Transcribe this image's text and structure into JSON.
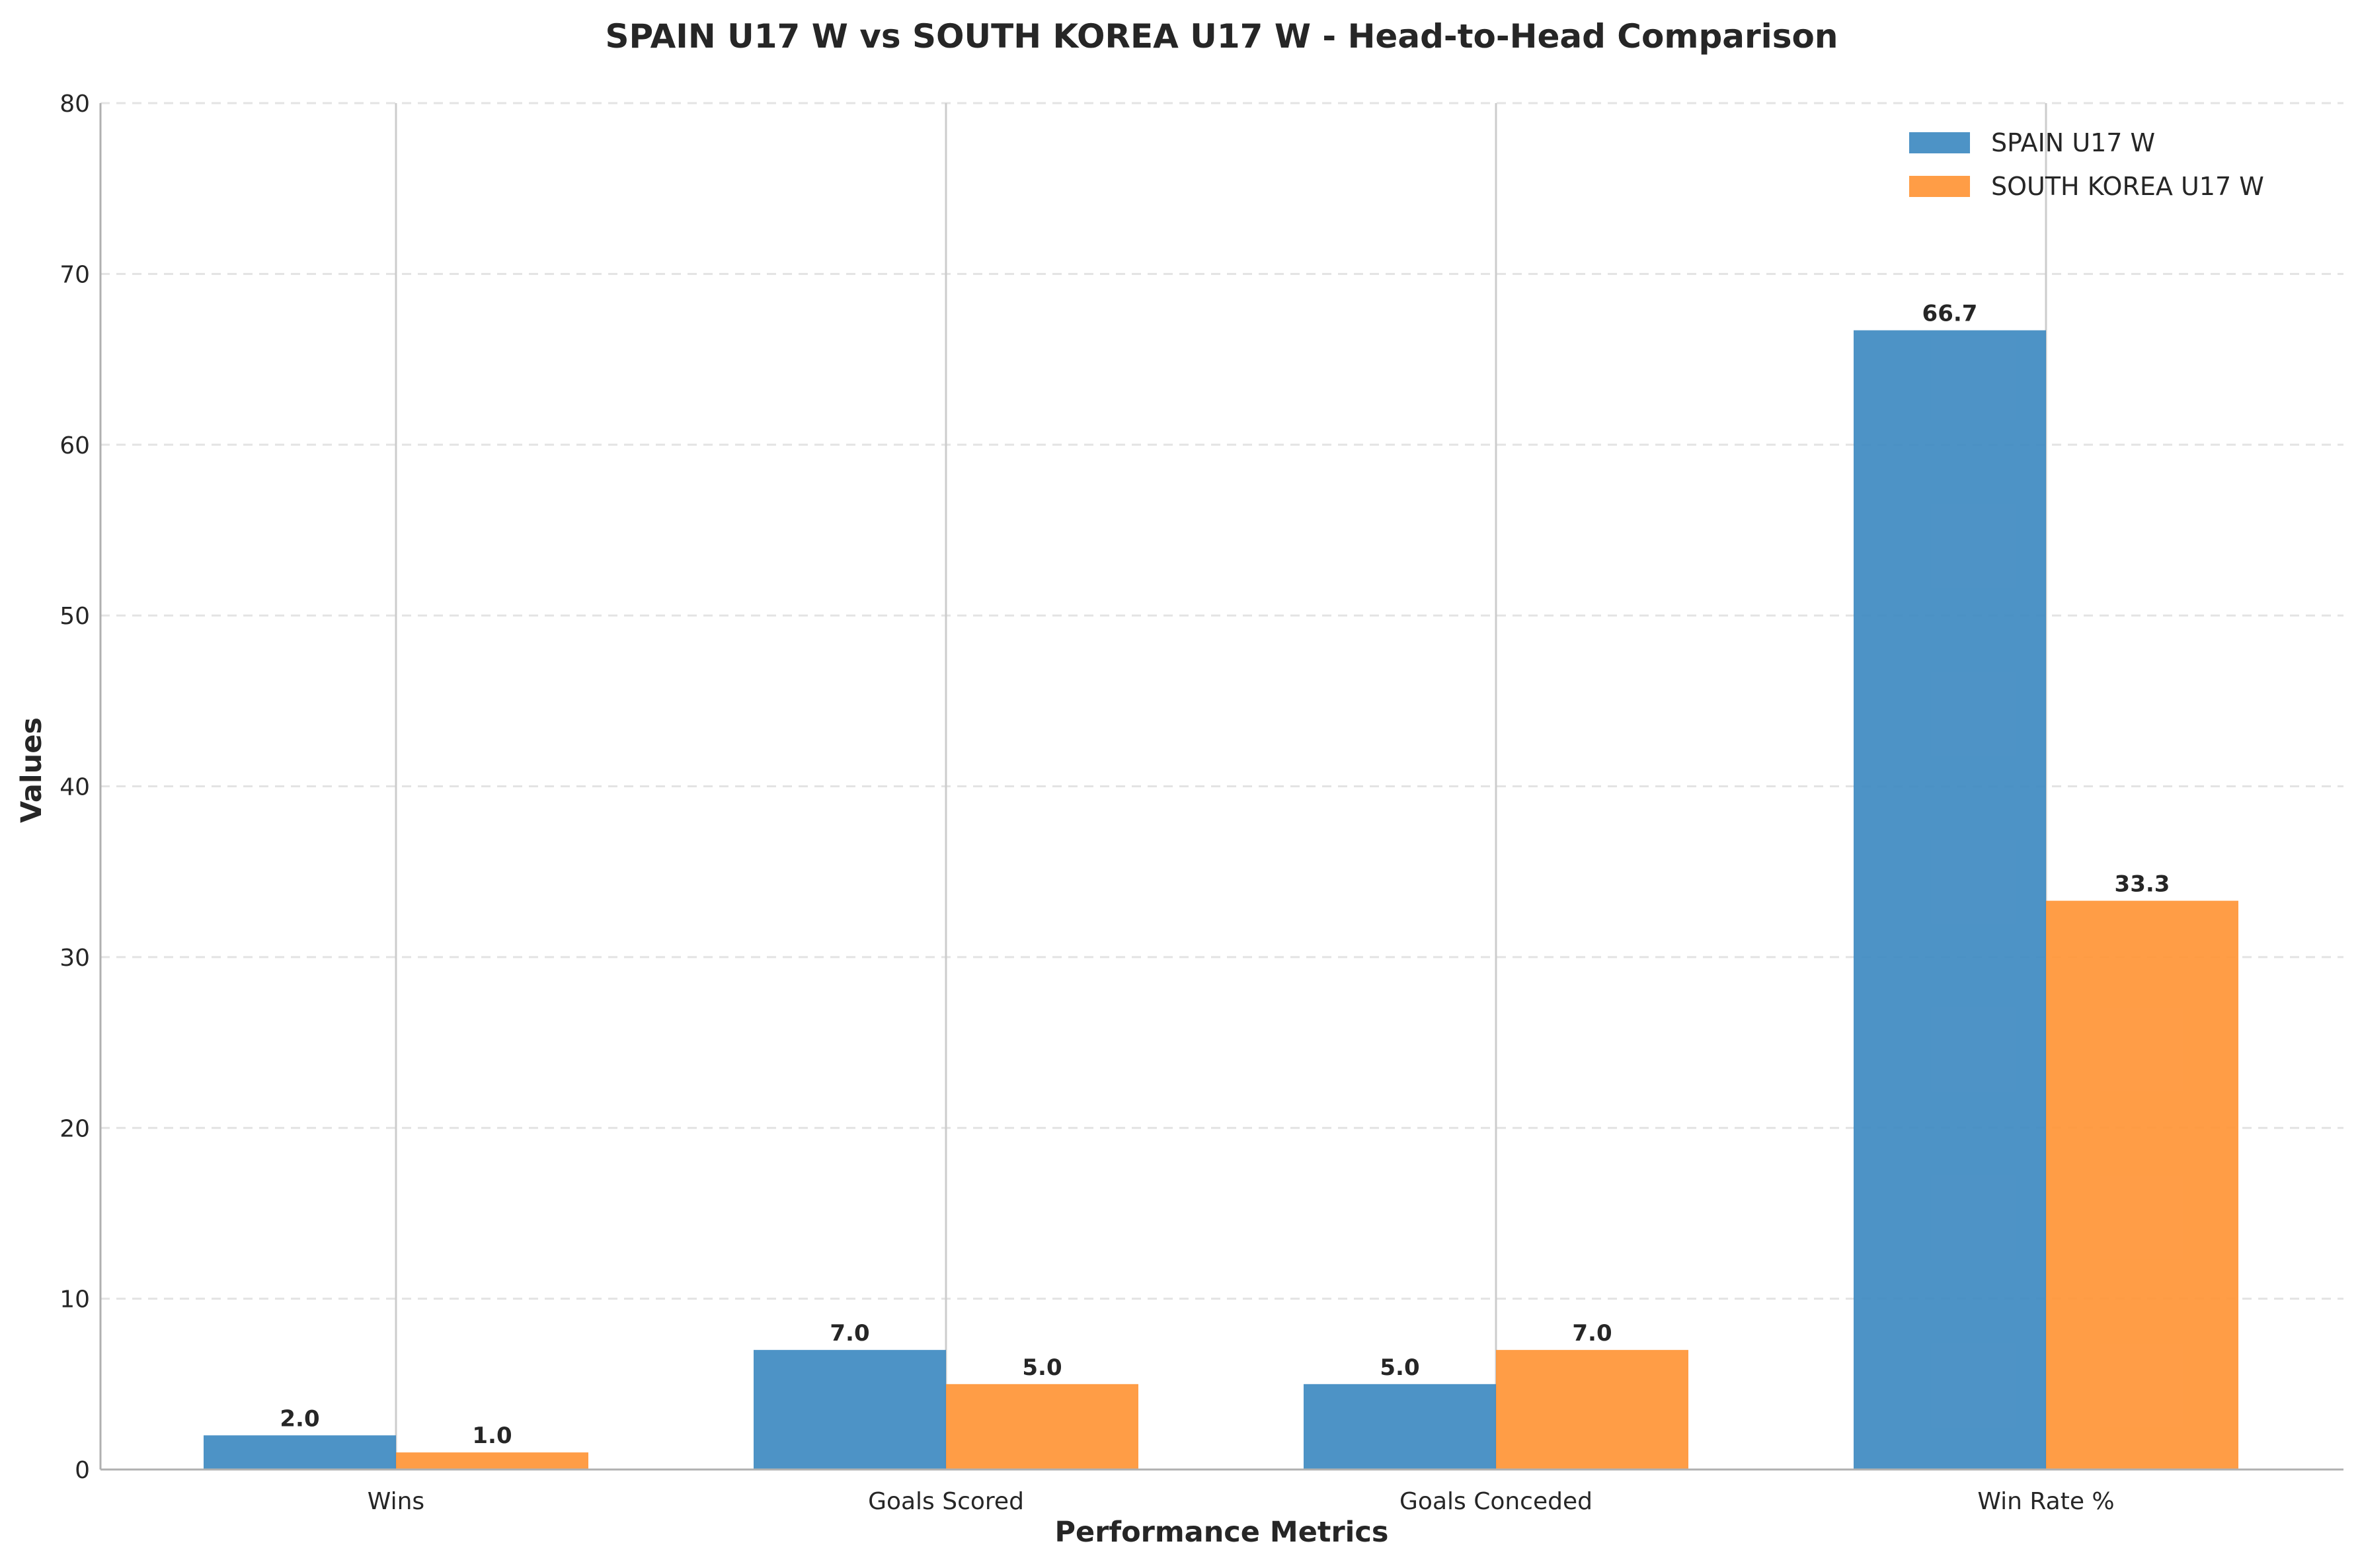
{
  "chart_data": {
    "type": "bar",
    "title": "SPAIN U17 W vs SOUTH KOREA U17 W - Head-to-Head Comparison",
    "xlabel": "Performance Metrics",
    "ylabel": "Values",
    "categories": [
      "Wins",
      "Goals Scored",
      "Goals Conceded",
      "Win Rate %"
    ],
    "series": [
      {
        "name": "SPAIN U17 W",
        "values": [
          2.0,
          7.0,
          5.0,
          66.7
        ],
        "labels": [
          "2.0",
          "7.0",
          "5.0",
          "66.7"
        ],
        "color": "#3a87c0"
      },
      {
        "name": "SOUTH KOREA U17 W",
        "values": [
          1.0,
          5.0,
          7.0,
          33.3
        ],
        "labels": [
          "1.0",
          "5.0",
          "7.0",
          "33.3"
        ],
        "color": "#ff9232"
      }
    ],
    "ylim": [
      0,
      80
    ],
    "yticks": [
      0,
      10,
      20,
      30,
      40,
      50,
      60,
      70,
      80
    ],
    "ytick_labels": [
      "0",
      "10",
      "20",
      "30",
      "40",
      "50",
      "60",
      "70",
      "80"
    ],
    "grid": {
      "y": "dashed",
      "x": "solid"
    },
    "legend_position": "top-right"
  }
}
